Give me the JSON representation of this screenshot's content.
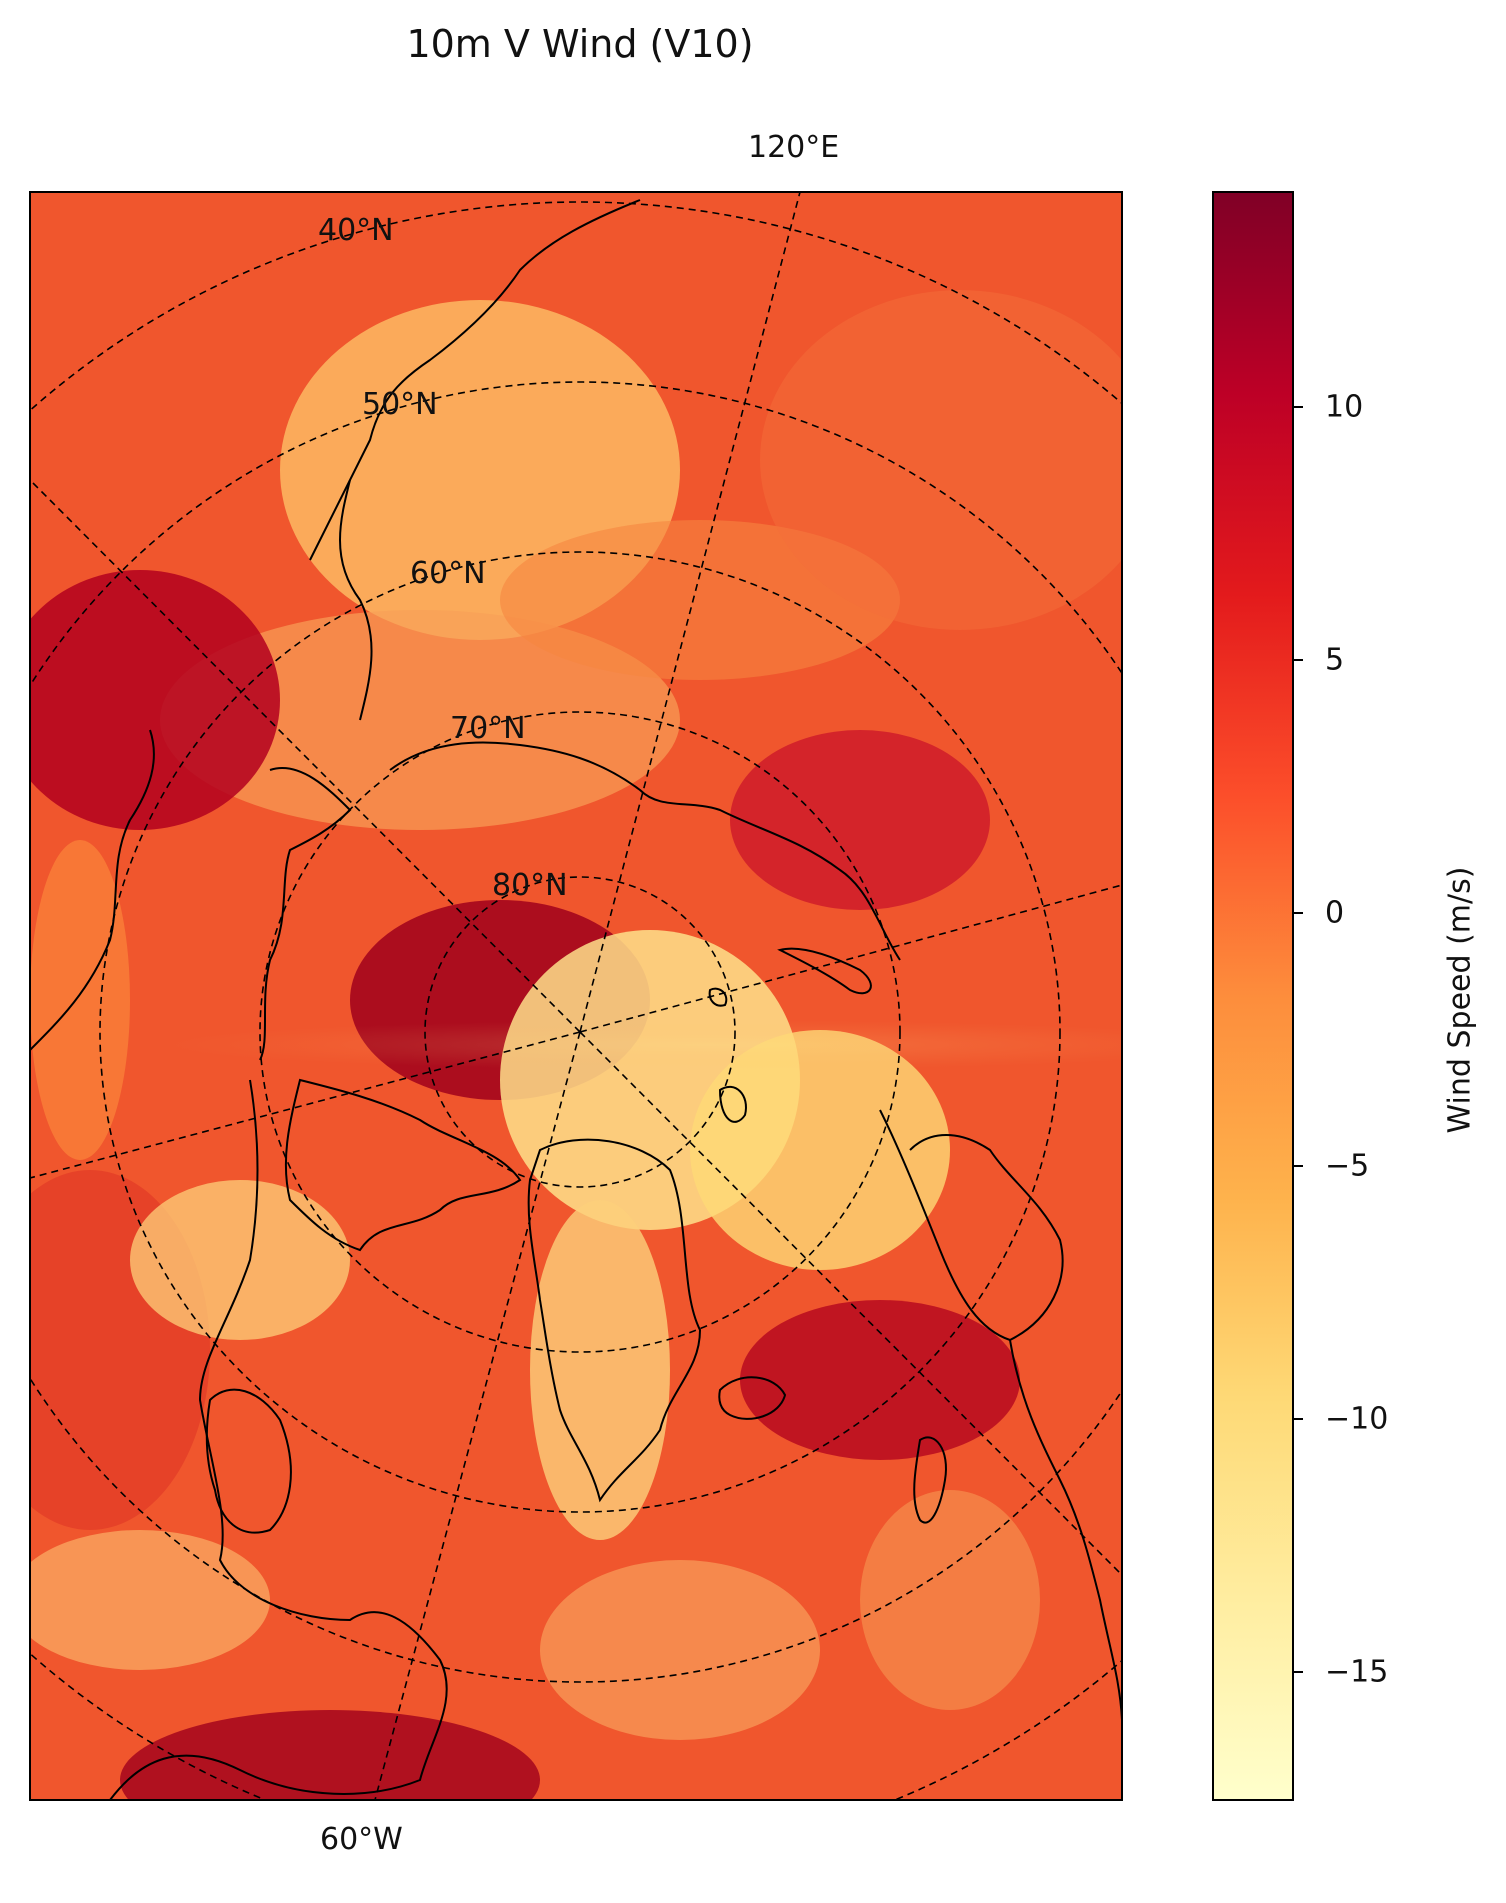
{
  "title": "10m V Wind (V10)",
  "map": {
    "projection": "north-polar-stereographic",
    "field": "10m V Wind (V10)",
    "colormap": "YlOrRd",
    "parallel_labels": [
      "40°N",
      "50°N",
      "60°N",
      "70°N",
      "80°N"
    ],
    "meridian_labels": {
      "top": "120°E",
      "bottom": "60°W"
    },
    "gridlines": "dashed black",
    "coastlines": "black"
  },
  "colorbar": {
    "title": "Wind Speed (m/s)",
    "range": [
      -18,
      14.5
    ],
    "ticks": [
      "10",
      "5",
      "0",
      "−5",
      "−10",
      "−15"
    ],
    "tick_values": [
      10,
      5,
      0,
      -5,
      -10,
      -15
    ],
    "colors": [
      "#ffffcc",
      "#ffeda0",
      "#fed976",
      "#feb24c",
      "#fd8d3c",
      "#fc4e2a",
      "#e31a1c",
      "#bd0026",
      "#800026"
    ]
  }
}
